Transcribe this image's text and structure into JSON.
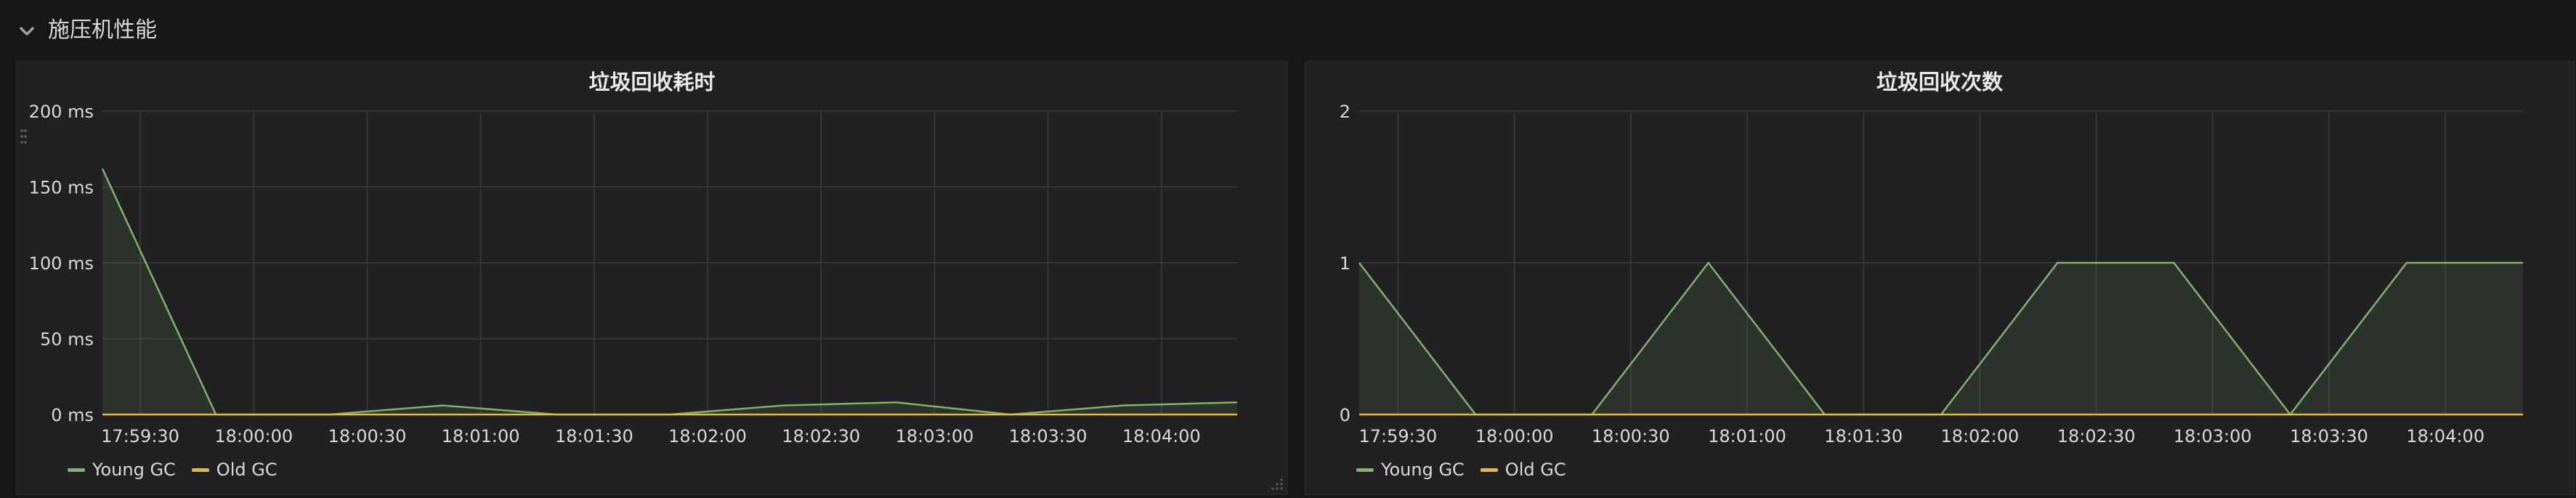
{
  "row": {
    "title": "施压机性能"
  },
  "colors": {
    "young": "#7eb26d",
    "old": "#eab839",
    "grid": "#3a3b3f",
    "axis_text": "#d8d9da"
  },
  "panels": [
    {
      "title": "垃圾回收耗时",
      "legend": [
        {
          "name": "Young GC",
          "color": "#7eb26d"
        },
        {
          "name": "Old GC",
          "color": "#eab839"
        }
      ]
    },
    {
      "title": "垃圾回收次数",
      "legend": [
        {
          "name": "Young GC",
          "color": "#7eb26d"
        },
        {
          "name": "Old GC",
          "color": "#eab839"
        }
      ]
    }
  ],
  "chart_data": [
    {
      "type": "line",
      "title": "垃圾回收耗时",
      "x_ticks": [
        "17:59:30",
        "18:00:00",
        "18:00:30",
        "18:01:00",
        "18:01:30",
        "18:02:00",
        "18:02:30",
        "18:03:00",
        "18:03:30",
        "18:04:00"
      ],
      "y_ticks": [
        "0 ms",
        "50 ms",
        "100 ms",
        "150 ms",
        "200 ms"
      ],
      "ylim": [
        0,
        200
      ],
      "x_range": [
        "17:59:20",
        "18:04:20"
      ],
      "grid": true,
      "legend_position": "bottom-left",
      "series": [
        {
          "name": "Young GC",
          "fill": true,
          "points": [
            [
              "17:59:20",
              162
            ],
            [
              "17:59:50",
              0
            ],
            [
              "18:00:20",
              0
            ],
            [
              "18:00:50",
              6
            ],
            [
              "18:01:20",
              0
            ],
            [
              "18:01:50",
              0
            ],
            [
              "18:02:20",
              6
            ],
            [
              "18:02:50",
              8
            ],
            [
              "18:03:20",
              0
            ],
            [
              "18:03:50",
              6
            ],
            [
              "18:04:20",
              8
            ]
          ]
        },
        {
          "name": "Old GC",
          "fill": false,
          "points": [
            [
              "17:59:20",
              0
            ],
            [
              "18:04:20",
              0
            ]
          ]
        }
      ]
    },
    {
      "type": "line",
      "title": "垃圾回收次数",
      "x_ticks": [
        "17:59:30",
        "18:00:00",
        "18:00:30",
        "18:01:00",
        "18:01:30",
        "18:02:00",
        "18:02:30",
        "18:03:00",
        "18:03:30",
        "18:04:00"
      ],
      "y_ticks": [
        "0",
        "1",
        "2"
      ],
      "ylim": [
        0,
        2
      ],
      "x_range": [
        "17:59:20",
        "18:04:20"
      ],
      "grid": true,
      "legend_position": "bottom-left",
      "series": [
        {
          "name": "Young GC",
          "fill": true,
          "points": [
            [
              "17:59:20",
              1
            ],
            [
              "17:59:50",
              0
            ],
            [
              "18:00:20",
              0
            ],
            [
              "18:00:50",
              1
            ],
            [
              "18:01:20",
              0
            ],
            [
              "18:01:50",
              0
            ],
            [
              "18:02:20",
              1
            ],
            [
              "18:02:50",
              1
            ],
            [
              "18:03:20",
              0
            ],
            [
              "18:03:50",
              1
            ],
            [
              "18:04:20",
              1
            ]
          ]
        },
        {
          "name": "Old GC",
          "fill": false,
          "points": [
            [
              "17:59:20",
              0
            ],
            [
              "18:04:20",
              0
            ]
          ]
        }
      ]
    }
  ]
}
